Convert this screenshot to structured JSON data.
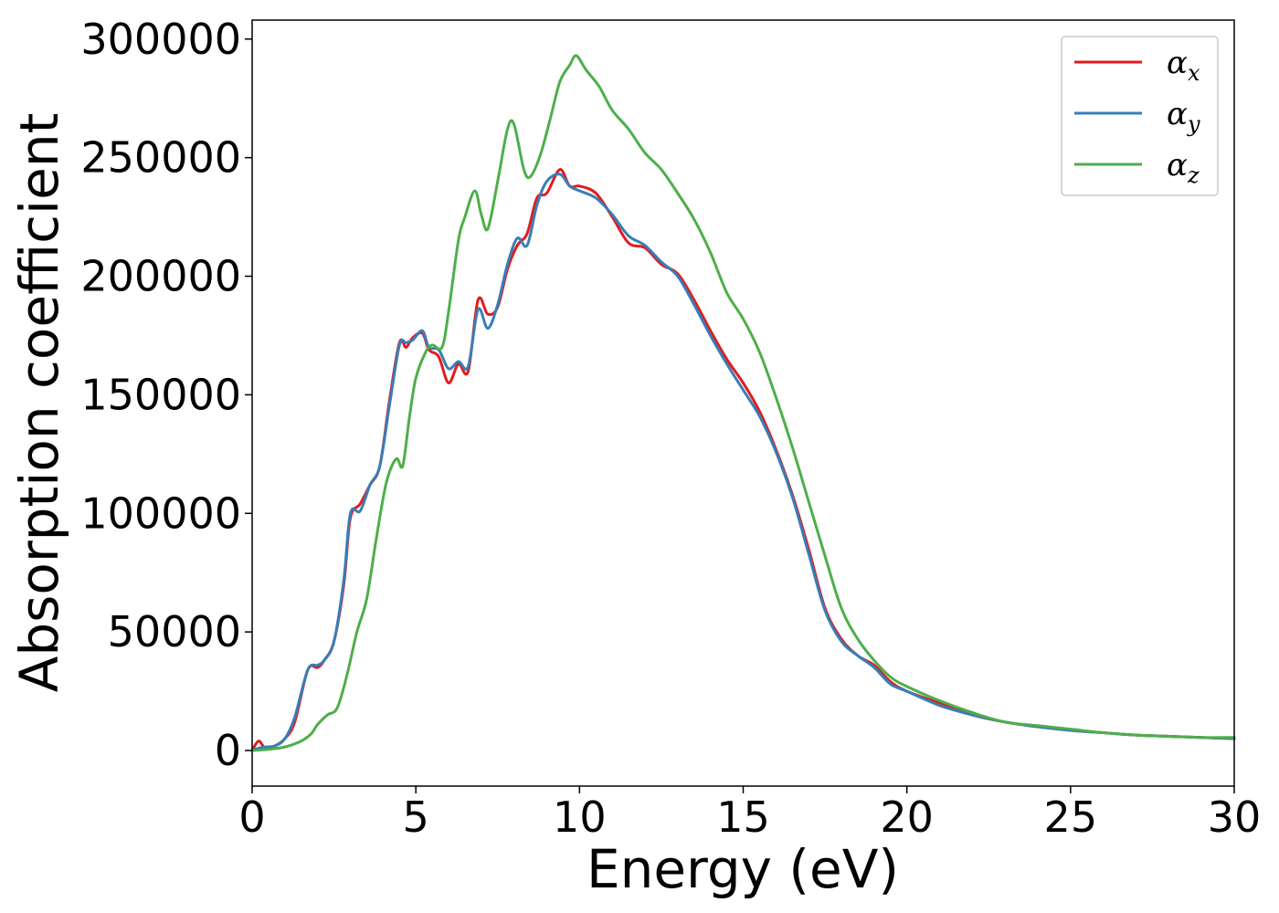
{
  "chart_data": {
    "type": "line",
    "title": "",
    "xlabel": "Energy (eV)",
    "ylabel": "Absorption coefficient",
    "xlim": [
      0,
      30
    ],
    "ylim": [
      -15000,
      308000
    ],
    "xticks": [
      0,
      5,
      10,
      15,
      20,
      25,
      30
    ],
    "yticks": [
      0,
      50000,
      100000,
      150000,
      200000,
      250000,
      300000
    ],
    "grid": false,
    "legend_position": "top-right",
    "series": [
      {
        "name": "αx",
        "legend_symbol": "α",
        "legend_subscript": "x",
        "color": "#e41a1c",
        "x": [
          0,
          0.2,
          0.4,
          0.7,
          1.0,
          1.3,
          1.7,
          2.0,
          2.2,
          2.5,
          2.8,
          3.0,
          3.3,
          3.6,
          3.9,
          4.2,
          4.5,
          4.7,
          4.9,
          5.2,
          5.4,
          5.7,
          6.0,
          6.3,
          6.6,
          6.9,
          7.2,
          7.5,
          7.8,
          8.1,
          8.4,
          8.7,
          9.0,
          9.4,
          9.7,
          10.0,
          10.5,
          11.0,
          11.5,
          12.0,
          12.5,
          13.0,
          13.5,
          14.0,
          14.5,
          15.0,
          15.5,
          16.0,
          16.5,
          17.0,
          17.5,
          18.0,
          18.5,
          19.0,
          19.5,
          20.0,
          21.0,
          22.0,
          23.0,
          24.0,
          25.0,
          26.0,
          27.0,
          28.0,
          29.0,
          30.0
        ],
        "values": [
          0,
          4000,
          1000,
          2000,
          5000,
          12000,
          34000,
          35000,
          38000,
          46000,
          70000,
          98000,
          104000,
          112000,
          120000,
          148000,
          172000,
          170000,
          174000,
          176000,
          169000,
          166000,
          155000,
          163000,
          160000,
          190000,
          184000,
          187000,
          203000,
          213000,
          218000,
          233000,
          235000,
          245000,
          238000,
          238000,
          235000,
          225000,
          214000,
          212000,
          205000,
          201000,
          190000,
          177000,
          165000,
          155000,
          143000,
          127000,
          108000,
          85000,
          60000,
          47000,
          40000,
          36000,
          29000,
          25000,
          20000,
          15000,
          12000,
          10000,
          8500,
          7500,
          6500,
          6000,
          5500,
          5000
        ]
      },
      {
        "name": "αy",
        "legend_symbol": "α",
        "legend_subscript": "y",
        "color": "#377eb8",
        "x": [
          0,
          0.2,
          0.4,
          0.7,
          1.0,
          1.3,
          1.7,
          2.0,
          2.2,
          2.5,
          2.8,
          3.0,
          3.3,
          3.6,
          3.9,
          4.2,
          4.5,
          4.7,
          4.9,
          5.2,
          5.4,
          5.7,
          6.0,
          6.3,
          6.6,
          6.9,
          7.2,
          7.5,
          7.8,
          8.1,
          8.4,
          8.7,
          9.0,
          9.4,
          9.7,
          10.0,
          10.5,
          11.0,
          11.5,
          12.0,
          12.5,
          13.0,
          13.5,
          14.0,
          14.5,
          15.0,
          15.5,
          16.0,
          16.5,
          17.0,
          17.5,
          18.0,
          18.5,
          19.0,
          19.5,
          20.0,
          21.0,
          22.0,
          23.0,
          24.0,
          25.0,
          26.0,
          27.0,
          28.0,
          29.0,
          30.0
        ],
        "values": [
          0,
          1000,
          1500,
          2000,
          5000,
          14000,
          34000,
          36000,
          38000,
          46000,
          72000,
          100000,
          101000,
          112000,
          120000,
          146000,
          171000,
          172000,
          173000,
          177000,
          170000,
          169000,
          161000,
          164000,
          162000,
          186000,
          178000,
          188000,
          205000,
          216000,
          213000,
          230000,
          240000,
          243000,
          238000,
          236000,
          233000,
          226000,
          217000,
          213000,
          206000,
          200000,
          188000,
          175000,
          163000,
          152000,
          141000,
          126000,
          107000,
          83000,
          59000,
          46000,
          40000,
          35000,
          28000,
          25000,
          19000,
          15000,
          12000,
          10000,
          8500,
          7500,
          6500,
          6000,
          5500,
          5000
        ]
      },
      {
        "name": "αz",
        "legend_symbol": "α",
        "legend_subscript": "z",
        "color": "#4daf4a",
        "x": [
          0,
          0.5,
          1.0,
          1.5,
          1.8,
          2.0,
          2.3,
          2.6,
          2.9,
          3.2,
          3.5,
          3.8,
          4.1,
          4.4,
          4.6,
          4.8,
          5.0,
          5.3,
          5.5,
          5.8,
          6.0,
          6.3,
          6.5,
          6.8,
          7.0,
          7.2,
          7.5,
          7.8,
          8.0,
          8.3,
          8.5,
          8.8,
          9.1,
          9.4,
          9.7,
          9.9,
          10.2,
          10.6,
          11.0,
          11.5,
          12.0,
          12.5,
          13.0,
          13.5,
          14.0,
          14.5,
          15.0,
          15.5,
          16.0,
          16.5,
          17.0,
          17.5,
          18.0,
          18.5,
          19.0,
          19.5,
          20.0,
          21.0,
          22.0,
          23.0,
          24.0,
          25.0,
          26.0,
          27.0,
          28.0,
          29.0,
          30.0
        ],
        "values": [
          0,
          500,
          1500,
          4000,
          7000,
          11000,
          15000,
          18000,
          32000,
          50000,
          64000,
          90000,
          113000,
          123000,
          120000,
          140000,
          157000,
          168000,
          171000,
          170000,
          185000,
          215000,
          225000,
          236000,
          226000,
          220000,
          240000,
          262000,
          264000,
          245000,
          242000,
          251000,
          266000,
          282000,
          289000,
          293000,
          287000,
          280000,
          270000,
          262000,
          252000,
          245000,
          235000,
          224000,
          210000,
          193000,
          182000,
          168000,
          149000,
          128000,
          105000,
          82000,
          60000,
          47000,
          38000,
          31000,
          27000,
          21000,
          16000,
          12000,
          10500,
          9000,
          7500,
          6500,
          6000,
          5500,
          5500
        ]
      }
    ]
  }
}
